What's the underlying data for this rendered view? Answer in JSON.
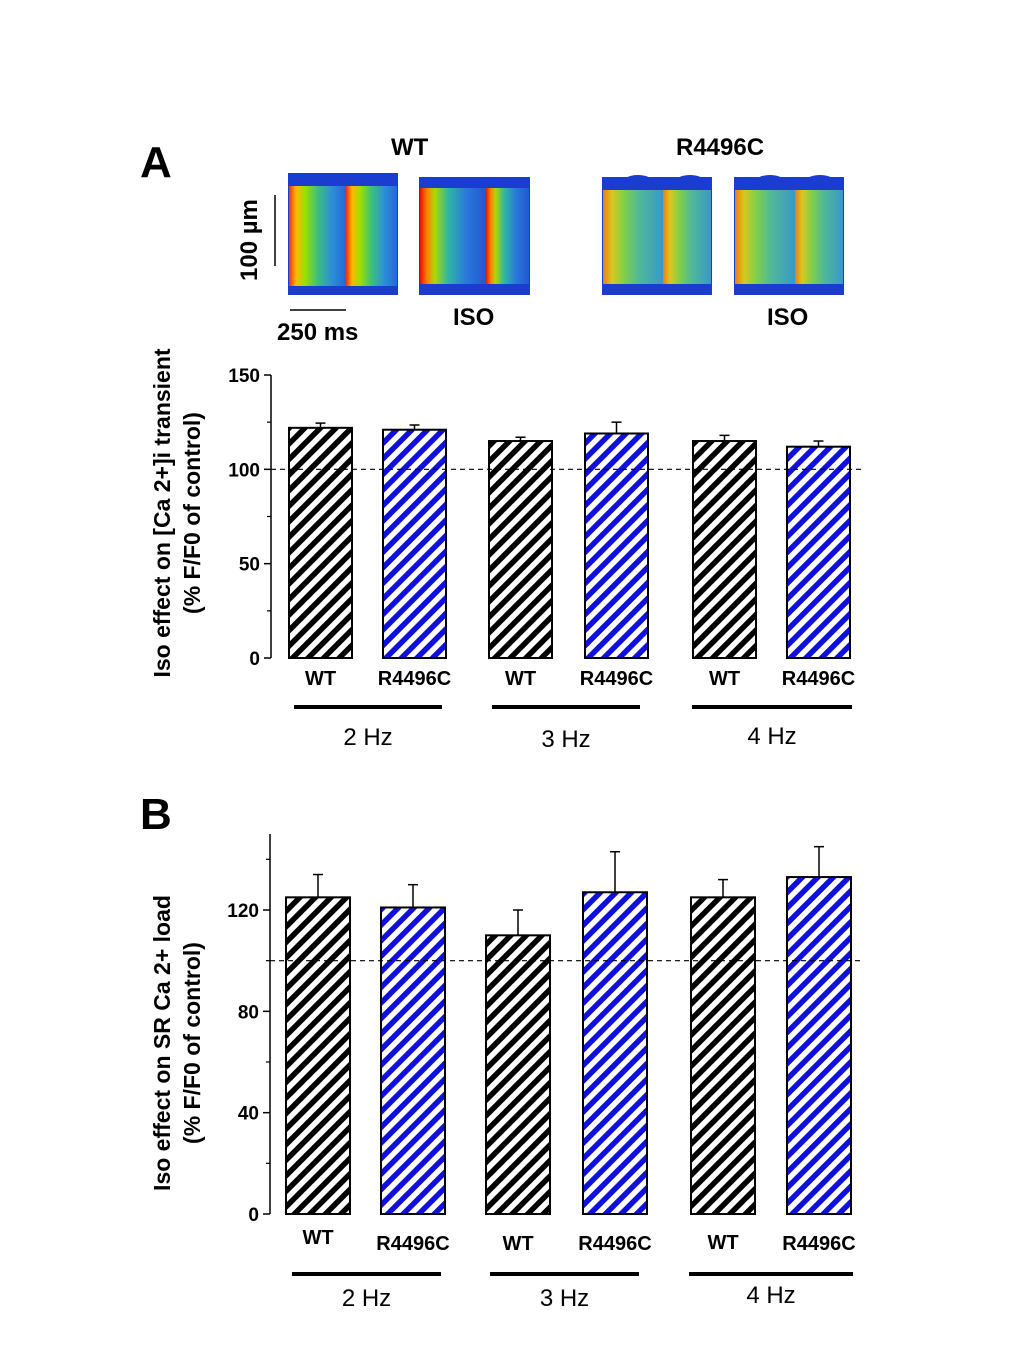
{
  "panel_a": {
    "letter": "A",
    "images": {
      "wt_label": "WT",
      "mut_label": "R4496C",
      "iso_label_1": "ISO",
      "iso_label_2": "ISO",
      "scale_y": "100 µm",
      "scale_x": "250 ms"
    }
  },
  "panel_b": {
    "letter": "B"
  },
  "colors": {
    "wt": "#000000",
    "mutant": "#1010dd",
    "background": "#ffffff"
  },
  "chart_data": [
    {
      "type": "bar",
      "pattern": "diagonal-hatch",
      "ylabel": "Iso effect on [Ca 2+]i transient (% F/F0 of control)",
      "ylim": [
        0,
        150
      ],
      "yticks": [
        0,
        50,
        100,
        150
      ],
      "minor_yticks": [
        25,
        75,
        125
      ],
      "reference_line": 100,
      "categories": [
        "WT",
        "R4496C",
        "WT",
        "R4496C",
        "WT",
        "R4496C"
      ],
      "groups": [
        "2 Hz",
        "3 Hz",
        "4 Hz"
      ],
      "values": [
        122,
        121,
        115,
        119,
        115,
        112
      ],
      "errors": [
        2.5,
        2.5,
        2,
        6,
        3,
        3
      ],
      "bar_colors": [
        "wt",
        "mutant",
        "wt",
        "mutant",
        "wt",
        "mutant"
      ]
    },
    {
      "type": "bar",
      "pattern": "diagonal-hatch",
      "ylabel": "Iso effect on SR Ca 2+ load (% F/F0 of control)",
      "ylim": [
        0,
        150
      ],
      "yticks": [
        0,
        40,
        80,
        120
      ],
      "minor_yticks": [
        20,
        60,
        100,
        140
      ],
      "reference_line": 100,
      "categories": [
        "WT",
        "R4496C",
        "WT",
        "R4496C",
        "WT",
        "R4496C"
      ],
      "groups": [
        "2 Hz",
        "3 Hz",
        "4 Hz"
      ],
      "values": [
        125,
        121,
        110,
        127,
        125,
        133
      ],
      "errors": [
        9,
        9,
        10,
        16,
        7,
        12
      ],
      "bar_colors": [
        "wt",
        "mutant",
        "wt",
        "mutant",
        "wt",
        "mutant"
      ]
    }
  ]
}
